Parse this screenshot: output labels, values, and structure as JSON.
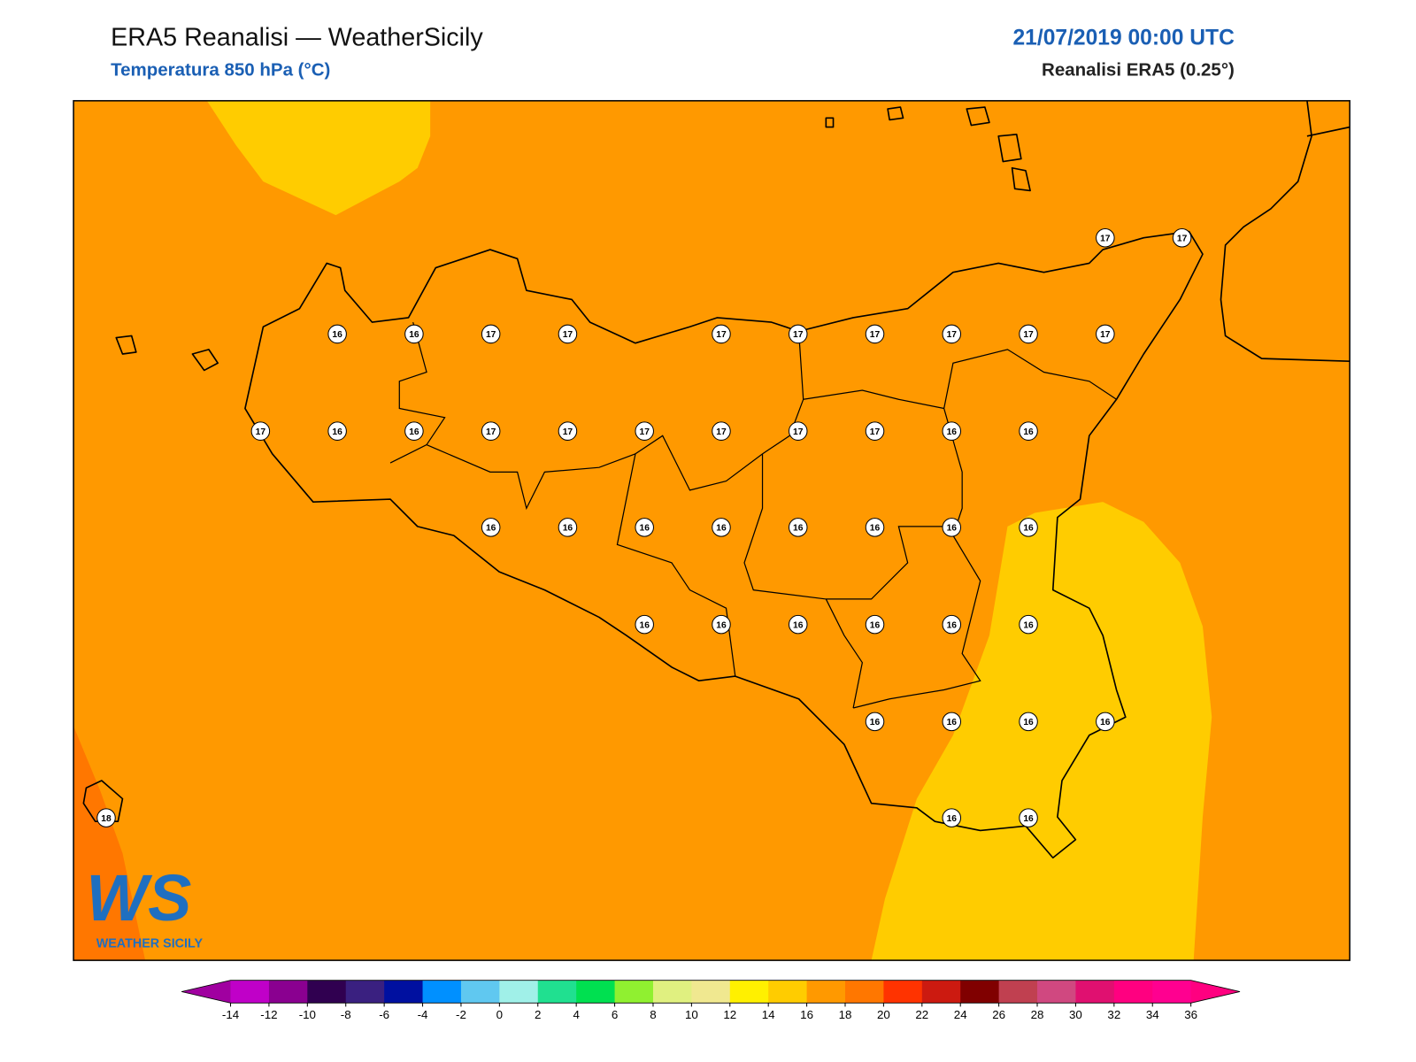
{
  "header": {
    "title": "ERA5 Reanalisi — WeatherSicily",
    "subtitle": "Temperatura 850 hPa (°C)",
    "date": "21/07/2019 00:00 UTC",
    "source": "Reanalisi ERA5 (0.25°)"
  },
  "stations": [
    17,
    17,
    16,
    16,
    17,
    17,
    17,
    17,
    17,
    17,
    17,
    17,
    17,
    16,
    16,
    17,
    17,
    17,
    17,
    17,
    17,
    16,
    16,
    16,
    16,
    16,
    16,
    16,
    16,
    16,
    16,
    16,
    16,
    16,
    16,
    16,
    16,
    16,
    16,
    16,
    16,
    18,
    16,
    16
  ],
  "colorbar": {
    "ticks": [
      -14,
      -12,
      -10,
      -8,
      -6,
      -4,
      -2,
      0,
      2,
      4,
      6,
      8,
      10,
      12,
      14,
      16,
      18,
      20,
      22,
      24,
      26,
      28,
      30,
      32,
      34,
      36
    ],
    "colors": [
      "#c000c8",
      "#8a0090",
      "#300050",
      "#3a2080",
      "#0010a0",
      "#0090ff",
      "#60c8f0",
      "#a0f0e8",
      "#20e090",
      "#00e050",
      "#90f030",
      "#e0f080",
      "#f0e890",
      "#fff000",
      "#ffcc00",
      "#ff9900",
      "#ff7700",
      "#ff3300",
      "#cc1a10",
      "#800000",
      "#c04050",
      "#d04880",
      "#e01070",
      "#ff0080",
      "#ff0090"
    ],
    "under": "#a000a0",
    "over": "#ff0080"
  },
  "logo": {
    "mark": "WS",
    "text": "WEATHER SICILY"
  }
}
